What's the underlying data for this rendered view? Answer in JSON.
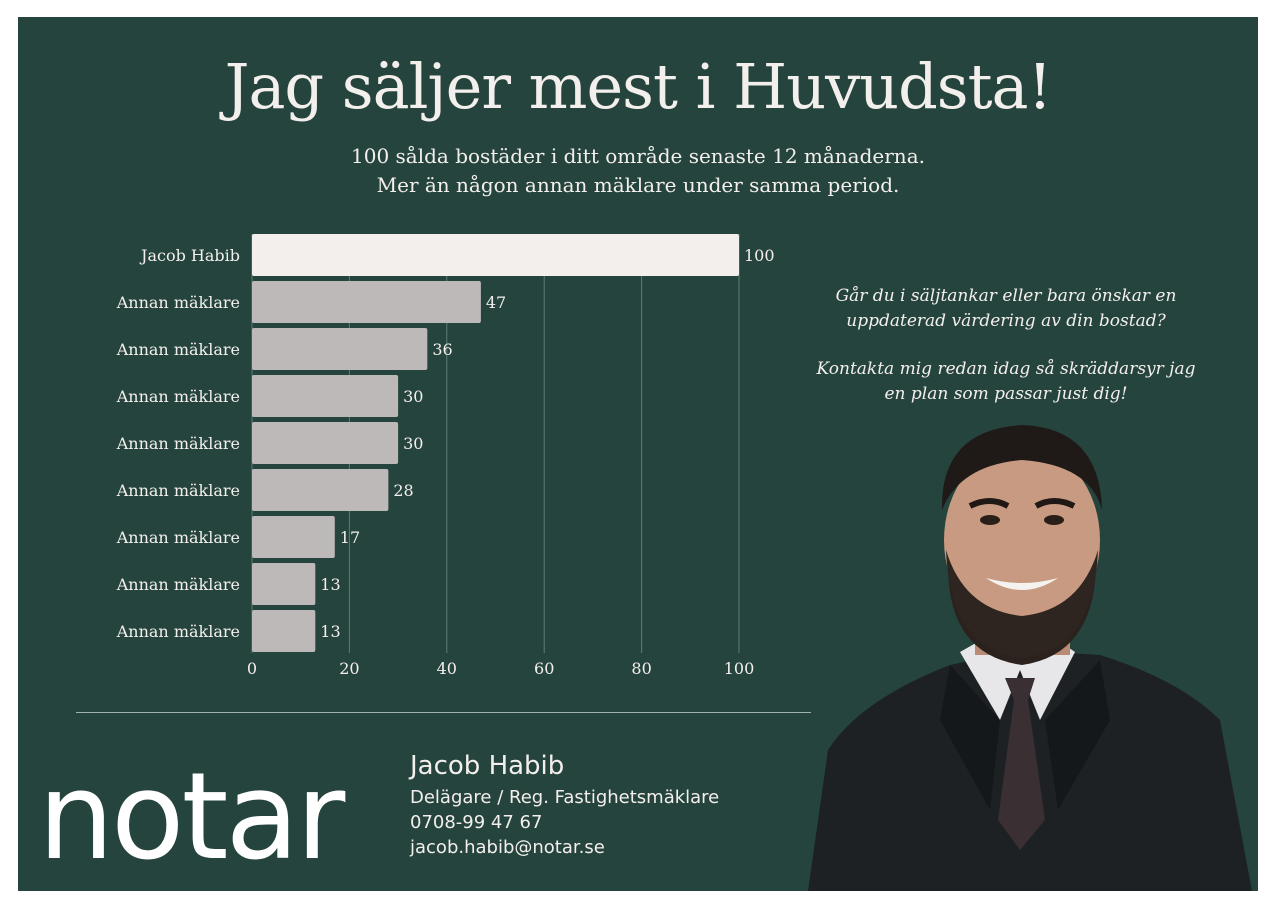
{
  "headline": "Jag säljer mest i Huvudsta!",
  "subheadline_1": "100 sålda bostäder i ditt område senaste 12 månaderna.",
  "subheadline_2": "Mer än någon annan mäklare under samma period.",
  "cta": {
    "line_1": "Går du i säljtankar eller bara önskar en",
    "line_2": "uppdaterad  värdering av din bostad?",
    "line_3": "Kontakta mig redan idag så skräddarsyr jag",
    "line_4": "en plan som passar just dig!"
  },
  "logo": "notar",
  "contact": {
    "name": "Jacob Habib",
    "role": "Delägare / Reg. Fastighetsmäklare",
    "phone": "0708-99 47 67",
    "email": "jacob.habib@notar.se"
  },
  "colors": {
    "background": "#26443e",
    "highlight_bar": "#f2efec",
    "other_bar": "#bdb9b9",
    "text": "#f3efec",
    "gridline": "#5e7d75"
  },
  "chart_data": {
    "type": "bar",
    "orientation": "horizontal",
    "categories": [
      "Jacob Habib",
      "Annan mäklare",
      "Annan mäklare",
      "Annan mäklare",
      "Annan mäklare",
      "Annan mäklare",
      "Annan mäklare",
      "Annan mäklare",
      "Annan mäklare"
    ],
    "values": [
      100,
      47,
      36,
      30,
      30,
      28,
      17,
      13,
      13
    ],
    "value_labels": [
      "100",
      "47",
      "36",
      "30",
      "30",
      "28",
      "17",
      "13",
      "13"
    ],
    "xlim": [
      0,
      100
    ],
    "xticks": [
      "0",
      "20",
      "40",
      "60",
      "80",
      "100"
    ],
    "grid": "vertical",
    "legend": "none"
  }
}
